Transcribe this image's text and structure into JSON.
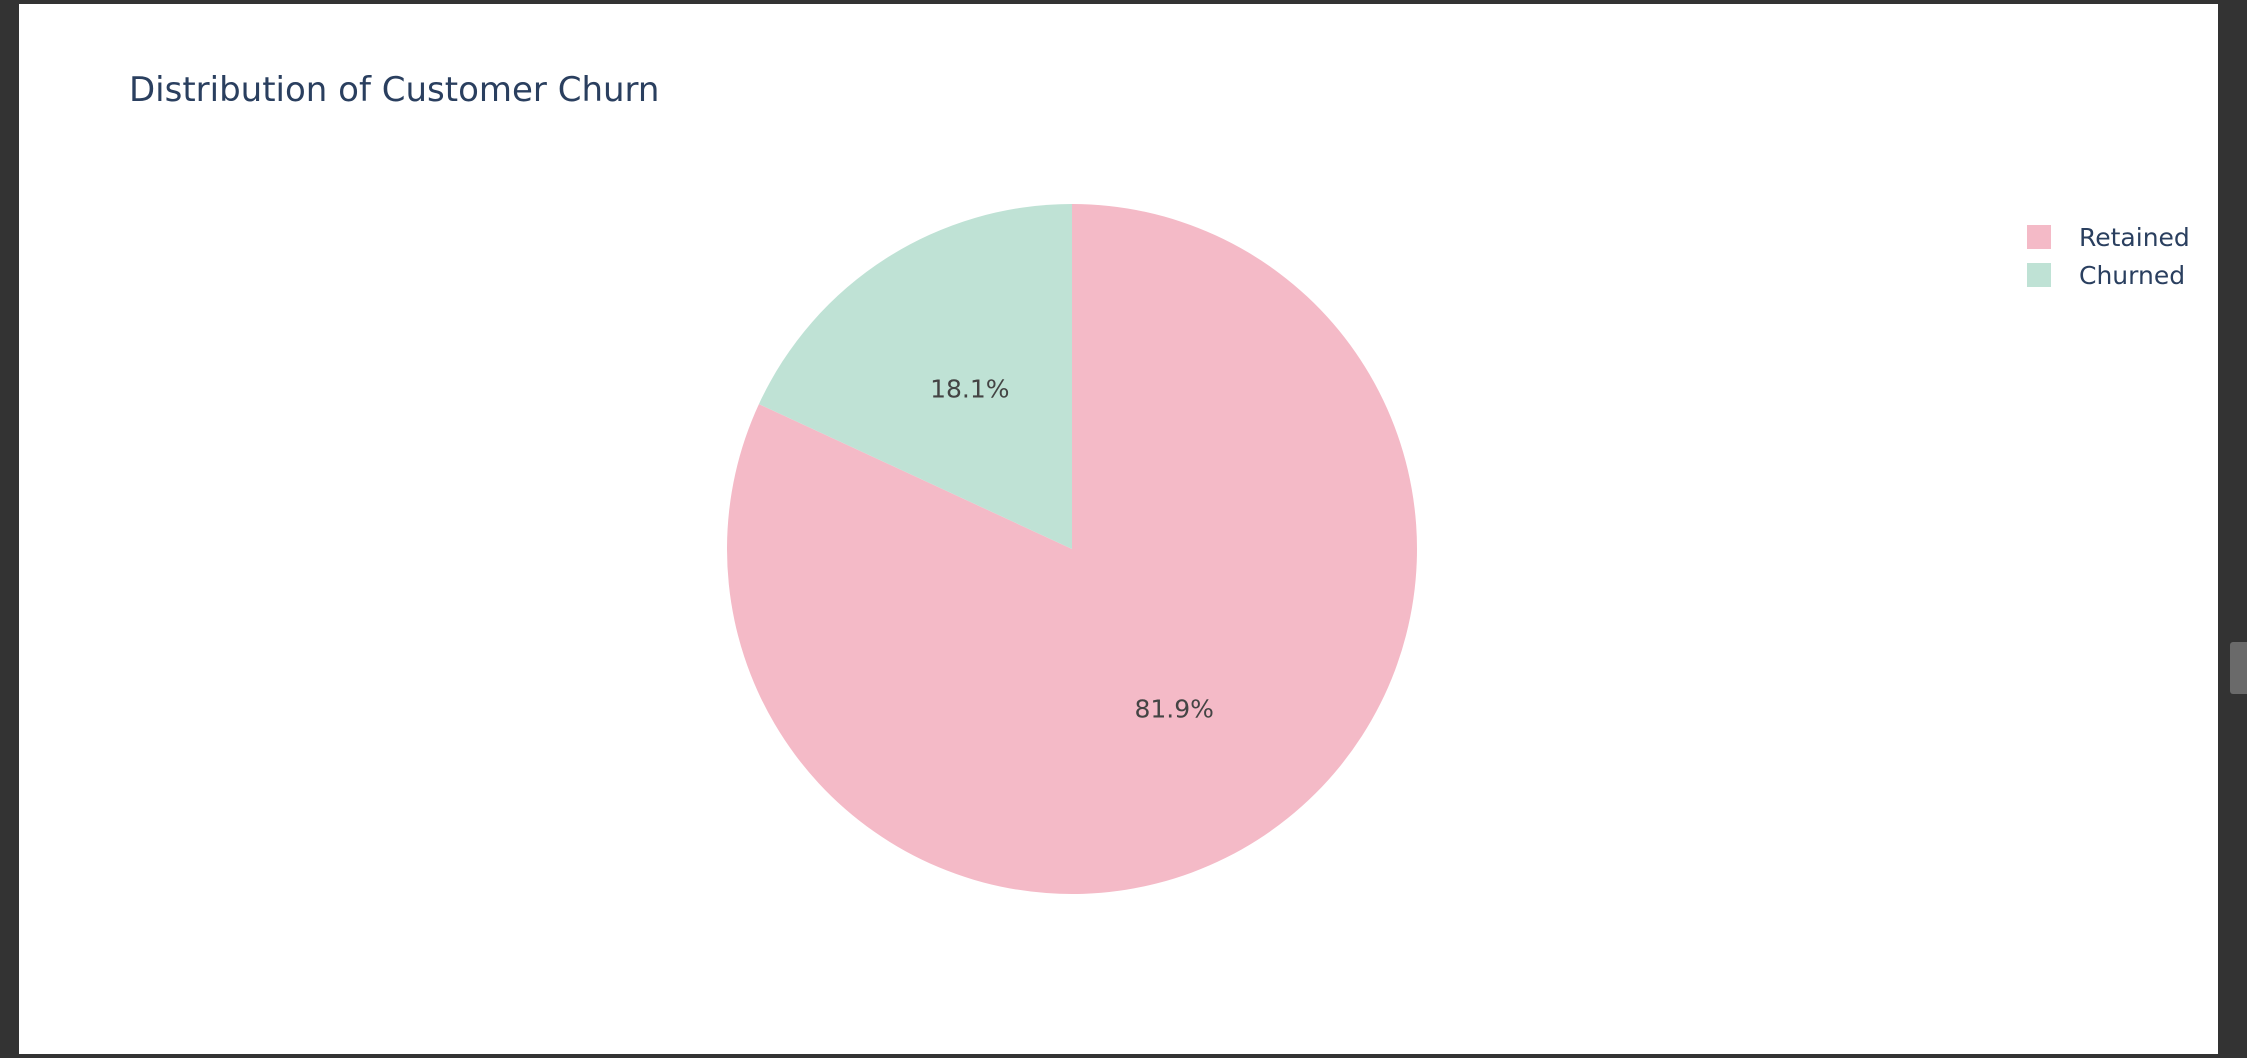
{
  "chart_data": {
    "type": "pie",
    "title": "Distribution of Customer Churn",
    "labels": [
      "Retained",
      "Churned"
    ],
    "values": [
      81.9,
      18.1
    ],
    "value_labels": [
      "81.9%",
      "18.1%"
    ],
    "colors": [
      "#f4bac7",
      "#bfe2d5"
    ],
    "legend_position": "top-right",
    "direction": "clockwise",
    "start": "top"
  }
}
